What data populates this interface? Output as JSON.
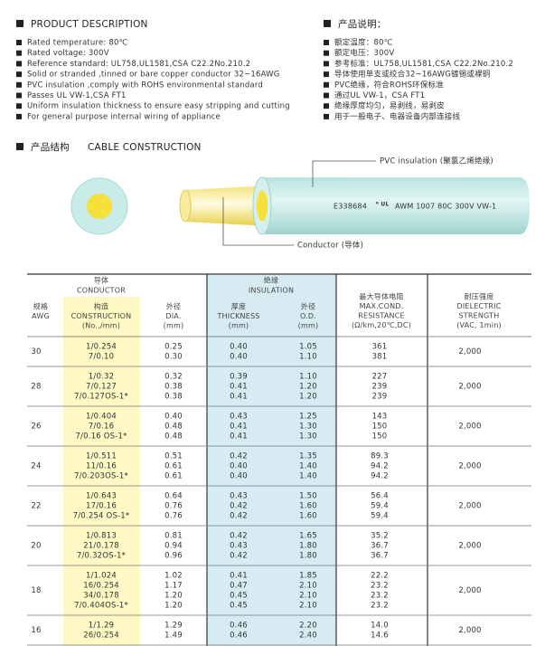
{
  "product_description": {
    "title": "PRODUCT DESCRIPTION",
    "items": [
      "Rated temperature: 80℃",
      "Rated voltage: 300V",
      "Reference standard: UL758,UL1581,CSA C22.2No.210.2",
      "Solid or stranded ,tinned or bare copper conductor 32~16AWG",
      "PVC insulation ,comply with ROHS environmental standard",
      "Passes UL VW-1,CSA FT1",
      "Uniform insulation thickness to ensure easy stripping and cutting",
      "For general purpose internal wiring of appliance"
    ]
  },
  "product_description_cn": {
    "title": "产品说明：",
    "items": [
      "额定温度：80℃",
      "额定电压：300V",
      "参考标准：UL758,UL1581,CSA C22.2No.210.2",
      "导体使用单支或绞合32~16AWG镀锡或裸铜",
      "PVC绝缘，符合ROHS环保标准",
      "通过UL VW-1，CSA FT1",
      "绝缘厚度均匀，易剥线，易剥皮",
      "用于一般电子、电器设备内部连接线"
    ]
  },
  "cable_construction": {
    "title_cn": "产品结构",
    "title_en": "CABLE CONSTRUCTION",
    "insulation_label": "PVC insulation (聚氯乙烯绝缘)",
    "conductor_label": "Conductor (导体)",
    "marking_code": "E338684",
    "marking_text": "AWM 1007 80C 300V VW-1"
  },
  "table": {
    "group_headers": [
      {
        "cn": "导体",
        "en": "CONDUCTOR"
      },
      {
        "cn": "绝缘",
        "en": "INSULATION"
      }
    ],
    "columns": [
      {
        "lines": [
          "规格",
          "AWG"
        ]
      },
      {
        "lines": [
          "构造",
          "CONSTRUCTION",
          "(No.,/mm)"
        ]
      },
      {
        "lines": [
          "外径",
          "DIA.",
          "(mm)"
        ]
      },
      {
        "lines": [
          "厚度",
          "THICKNESS",
          "(mm)"
        ]
      },
      {
        "lines": [
          "外径",
          "O.D.",
          "(mm)"
        ]
      },
      {
        "lines": [
          "最大导体电阻",
          "MAX.COND.",
          "RESISTANCE",
          "(Ω/km,20℃,DC)"
        ]
      },
      {
        "lines": [
          "耐压强度",
          "DIELECTRIC",
          "STRENGTH",
          "(VAC, 1min)"
        ]
      }
    ],
    "rows": [
      {
        "awg": "30",
        "construction": [
          "1/0.254",
          "7/0.10"
        ],
        "dia": [
          "0.25",
          "0.30"
        ],
        "thickness": [
          "0.40",
          "0.40"
        ],
        "od": [
          "1.05",
          "1.10"
        ],
        "resistance": [
          "361",
          "381"
        ],
        "dielectric": "2,000"
      },
      {
        "awg": "28",
        "construction": [
          "1/0.32",
          "7/0.127",
          "7/0.127OS-1*"
        ],
        "dia": [
          "0.32",
          "0.38",
          "0.38"
        ],
        "thickness": [
          "0.39",
          "0.41",
          "0.41"
        ],
        "od": [
          "1.10",
          "1.20",
          "1.20"
        ],
        "resistance": [
          "227",
          "239",
          "239"
        ],
        "dielectric": "2,000"
      },
      {
        "awg": "26",
        "construction": [
          "1/0.404",
          "7/0.16",
          "7/0.16 OS-1*"
        ],
        "dia": [
          "0.40",
          "0.48",
          "0.48"
        ],
        "thickness": [
          "0.43",
          "0.41",
          "0.41"
        ],
        "od": [
          "1.25",
          "1.30",
          "1.30"
        ],
        "resistance": [
          "143",
          "150",
          "150"
        ],
        "dielectric": "2,000"
      },
      {
        "awg": "24",
        "construction": [
          "1/0.511",
          "11/0.16",
          "7/0.203OS-1*"
        ],
        "dia": [
          "0.51",
          "0.61",
          "0.61"
        ],
        "thickness": [
          "0.42",
          "0.40",
          "0.40"
        ],
        "od": [
          "1.35",
          "1.40",
          "1.40"
        ],
        "resistance": [
          "89.3",
          "94.2",
          "94.2"
        ],
        "dielectric": "2,000"
      },
      {
        "awg": "22",
        "construction": [
          "1/0.643",
          "17/0.16",
          "7/0.254 OS-1*"
        ],
        "dia": [
          "0.64",
          "0.76",
          "0.76"
        ],
        "thickness": [
          "0.43",
          "0.42",
          "0.42"
        ],
        "od": [
          "1.50",
          "1.60",
          "1.60"
        ],
        "resistance": [
          "56.4",
          "59.4",
          "59.4"
        ],
        "dielectric": "2,000"
      },
      {
        "awg": "20",
        "construction": [
          "1/0.813",
          "21/0.178",
          "7/0.32OS-1*"
        ],
        "dia": [
          "0.81",
          "0.94",
          "0.96"
        ],
        "thickness": [
          "0.42",
          "0.43",
          "0.42"
        ],
        "od": [
          "1.65",
          "1.80",
          "1.80"
        ],
        "resistance": [
          "35.2",
          "36.7",
          "36.7"
        ],
        "dielectric": "2,000"
      },
      {
        "awg": "18",
        "construction": [
          "1/1.024",
          "16/0.254",
          "34/0.178",
          "7/0.404OS-1*"
        ],
        "dia": [
          "1.02",
          "1.17",
          "1.20",
          "1.20"
        ],
        "thickness": [
          "0.41",
          "0.47",
          "0.45",
          "0.45"
        ],
        "od": [
          "1.85",
          "2.10",
          "2.10",
          "2.10"
        ],
        "resistance": [
          "22.2",
          "23.2",
          "23.2",
          "23.2"
        ],
        "dielectric": "2,000"
      },
      {
        "awg": "16",
        "construction": [
          "1/1.29",
          "26/0.254"
        ],
        "dia": [
          "1.29",
          "1.49"
        ],
        "thickness": [
          "0.46",
          "0.46"
        ],
        "od": [
          "2.20",
          "2.40"
        ],
        "resistance": [
          "14.0",
          "14.6"
        ],
        "dielectric": "2,000"
      }
    ]
  }
}
